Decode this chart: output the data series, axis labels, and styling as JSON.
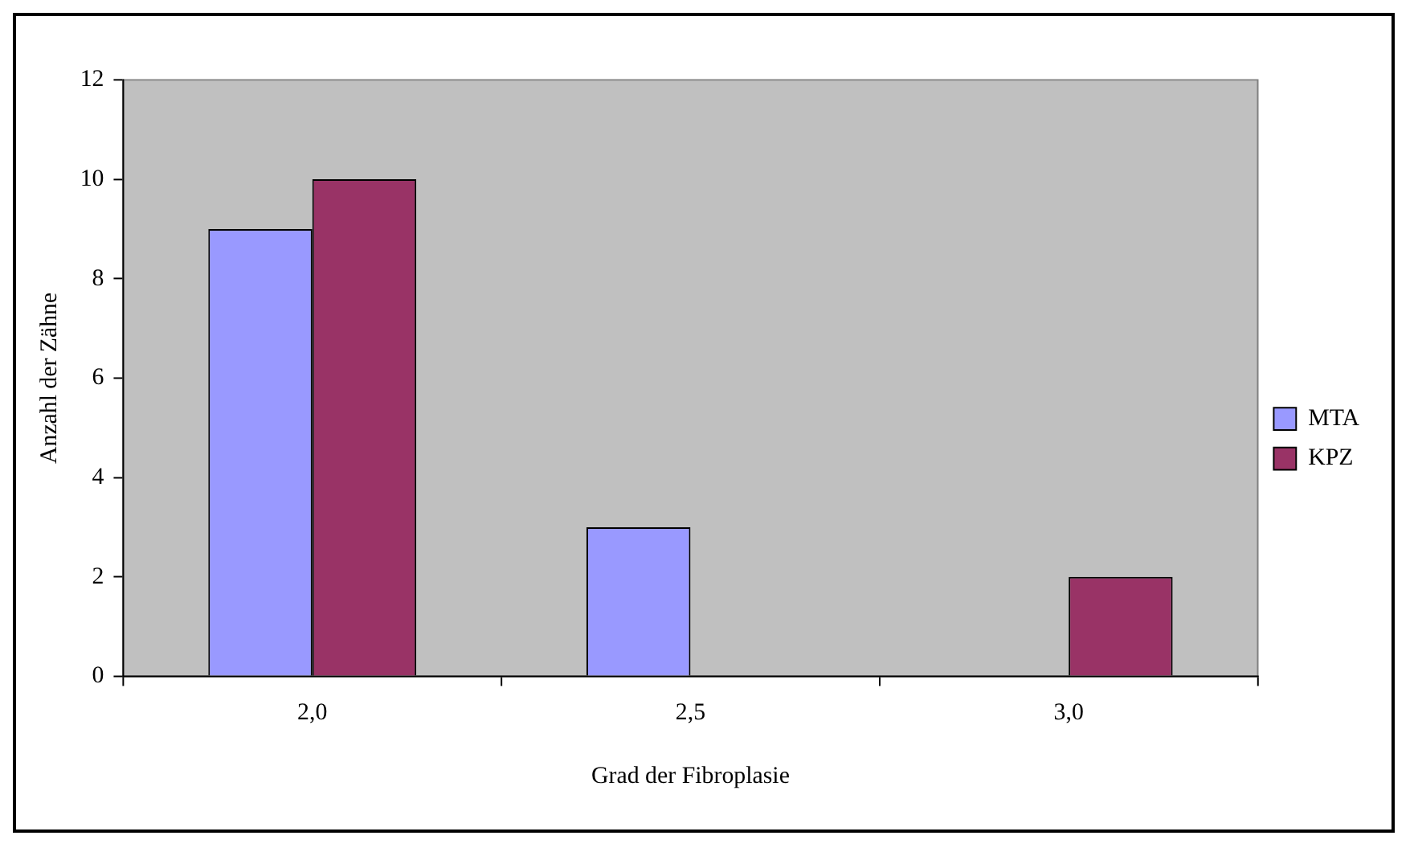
{
  "chart_data": {
    "type": "bar",
    "xlabel": "Grad der Fibroplasie",
    "ylabel": "Anzahl der Zähne",
    "categories": [
      "2,0",
      "2,5",
      "3,0"
    ],
    "series": [
      {
        "name": "MTA",
        "color": "#9999ff",
        "values": [
          9,
          3,
          null
        ]
      },
      {
        "name": "KPZ",
        "color": "#993366",
        "values": [
          10,
          null,
          2
        ]
      }
    ],
    "ylim": [
      0,
      12
    ],
    "yticks": [
      0,
      2,
      4,
      6,
      8,
      10,
      12
    ],
    "grid": false,
    "legend": "right"
  }
}
